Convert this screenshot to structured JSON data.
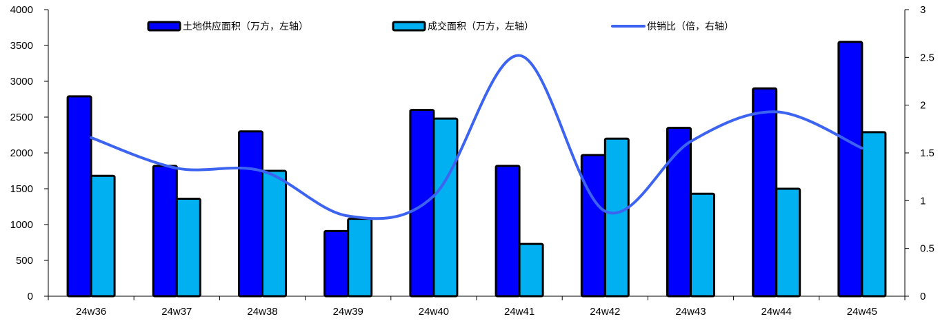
{
  "chart_data": {
    "type": "bar",
    "categories": [
      "24w36",
      "24w37",
      "24w38",
      "24w39",
      "24w40",
      "24w41",
      "24w42",
      "24w43",
      "24w44",
      "24w45"
    ],
    "series": [
      {
        "name": "土地供应面积（万方，左轴）",
        "type": "bar",
        "axis": "left",
        "color": "#0000FF",
        "values": [
          2790,
          1820,
          2300,
          910,
          2600,
          1820,
          1970,
          2350,
          2900,
          3550
        ]
      },
      {
        "name": "成交面积（万方，左轴）",
        "type": "bar",
        "axis": "left",
        "color": "#00B0F0",
        "values": [
          1680,
          1360,
          1750,
          1080,
          2480,
          730,
          2200,
          1430,
          1500,
          2290
        ]
      },
      {
        "name": "供销比（倍，右轴）",
        "type": "line",
        "axis": "right",
        "color": "#3D64F0",
        "values": [
          1.66,
          1.34,
          1.31,
          0.84,
          1.05,
          2.52,
          0.89,
          1.62,
          1.93,
          1.55
        ]
      }
    ],
    "y_left": {
      "min": 0,
      "max": 4000,
      "ticks": [
        "0",
        "500",
        "1000",
        "1500",
        "2000",
        "2500",
        "3000",
        "3500",
        "4000"
      ]
    },
    "y_right": {
      "min": 0,
      "max": 3,
      "ticks": [
        "0",
        "0.5",
        "1",
        "1.5",
        "2",
        "2.5",
        "3"
      ]
    },
    "grid": false,
    "legend_position": "top-center"
  }
}
